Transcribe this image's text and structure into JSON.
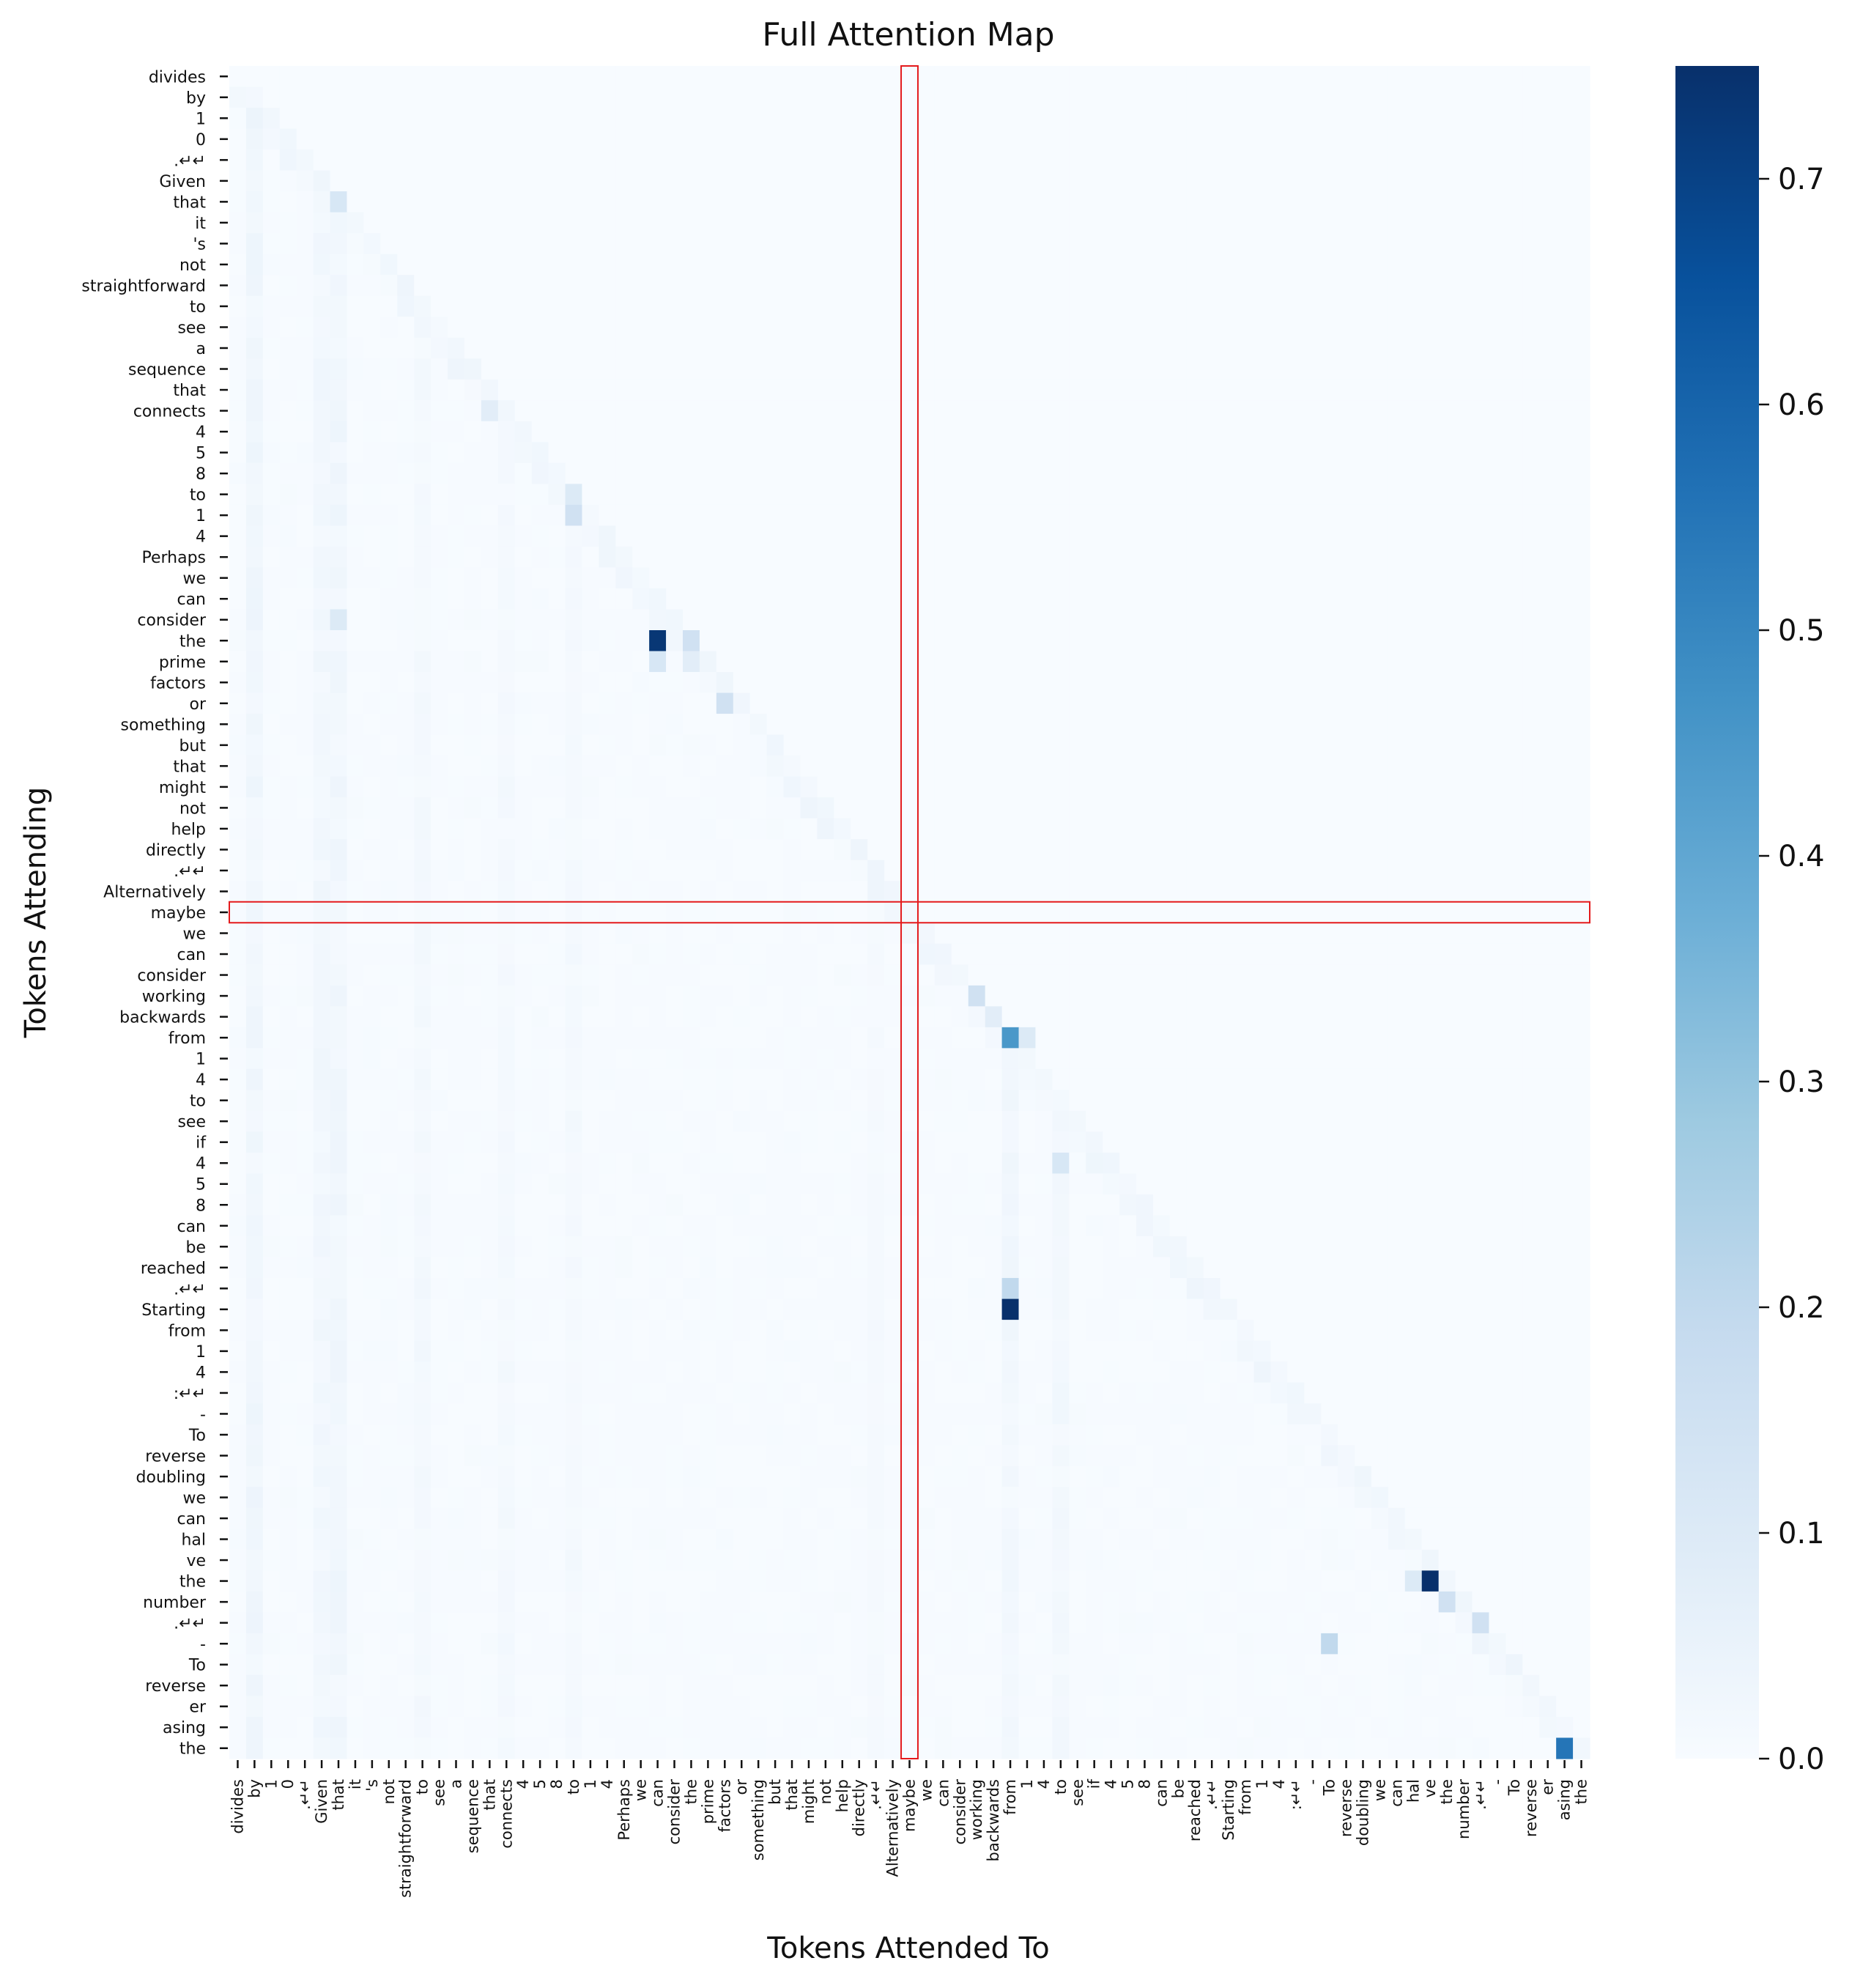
{
  "chart_data": {
    "type": "heatmap",
    "title": "Full Attention Map",
    "xlabel": "Tokens Attended To",
    "ylabel": "Tokens Attending",
    "colormap": "Blues",
    "colors": {
      "low": "#f7fbff",
      "high": "#08306b",
      "highlight": "#e41a1c"
    },
    "vmin": 0.0,
    "vmax": 0.75,
    "colorbar_ticks": [
      "0.0",
      "0.1",
      "0.2",
      "0.3",
      "0.4",
      "0.5",
      "0.6",
      "0.7"
    ],
    "x_tokens": [
      "divides",
      "by",
      "1",
      "0",
      ".↵↵",
      "Given",
      "that",
      "it",
      "'s",
      "not",
      "straightforward",
      "to",
      "see",
      "a",
      "sequence",
      "that",
      "connects",
      "4",
      "5",
      "8",
      "to",
      "1",
      "4",
      "Perhaps",
      "we",
      "can",
      "consider",
      "the",
      "prime",
      "factors",
      "or",
      "something",
      "but",
      "that",
      "might",
      "not",
      "help",
      "directly",
      ".↵↵",
      "Alternatively",
      "maybe",
      "we",
      "can",
      "consider",
      "working",
      "backwards",
      "from",
      "1",
      "4",
      "to",
      "see",
      "if",
      "4",
      "5",
      "8",
      "can",
      "be",
      "reached",
      ".↵↵",
      "Starting",
      "from",
      "1",
      "4",
      ":↵↵",
      "-",
      "To",
      "reverse",
      "doubling",
      "we",
      "can",
      "hal",
      "ve",
      "the",
      "number",
      ".↵↵",
      "-",
      "To",
      "reverse",
      "er",
      "asing",
      "the"
    ],
    "y_tokens": [
      "divides",
      "by",
      "1",
      "0",
      ".↵↵",
      "Given",
      "that",
      "it",
      "'s",
      "not",
      "straightforward",
      "to",
      "see",
      "a",
      "sequence",
      "that",
      "connects",
      "4",
      "5",
      "8",
      "to",
      "1",
      "4",
      "Perhaps",
      "we",
      "can",
      "consider",
      "the",
      "prime",
      "factors",
      "or",
      "something",
      "but",
      "that",
      "might",
      "not",
      "help",
      "directly",
      ".↵↵",
      "Alternatively",
      "maybe",
      "we",
      "can",
      "consider",
      "working",
      "backwards",
      "from",
      "1",
      "4",
      "to",
      "see",
      "if",
      "4",
      "5",
      "8",
      "can",
      "be",
      "reached",
      ".↵↵",
      "Starting",
      "from",
      "1",
      "4",
      ":↵↵",
      "-",
      "To",
      "reverse",
      "doubling",
      "we",
      "can",
      "hal",
      "ve",
      "the",
      "number",
      ".↵↵",
      "-",
      "To",
      "reverse",
      "er",
      "asing",
      "the"
    ],
    "highlight": {
      "row_token": "maybe",
      "col_token": "maybe"
    },
    "notable_cells": [
      {
        "row": "the",
        "col": "can",
        "value": 0.73
      },
      {
        "row": "the",
        "col": "the",
        "value": 0.15
      },
      {
        "row": "prime",
        "col": "can",
        "value": 0.12
      },
      {
        "row": "prime",
        "col": "the",
        "value": 0.08
      },
      {
        "row": "or",
        "col": "factors",
        "value": 0.15
      },
      {
        "row": "1",
        "col": "to",
        "value": 0.15
      },
      {
        "row": "to",
        "col": "to",
        "value": 0.1
      },
      {
        "row": "that",
        "col": "that",
        "value": 0.12
      },
      {
        "row": "consider",
        "col": "that",
        "value": 0.1
      },
      {
        "row": "connects",
        "col": "connects",
        "value": 0.08
      },
      {
        "row": "working",
        "col": "working",
        "value": 0.15
      },
      {
        "row": "from",
        "col": "from",
        "value": 0.45
      },
      {
        "row": "backwards",
        "col": "backwards",
        "value": 0.08
      },
      {
        "row": "Starting",
        "col": "from",
        "value": 0.75
      },
      {
        "row": ".↵↵",
        "col": "from",
        "value": 0.2
      },
      {
        "row": "4",
        "col": "to",
        "value": 0.12
      },
      {
        "row": "from",
        "col": "1",
        "value": 0.1
      },
      {
        "row": "the",
        "col": "ve",
        "value": 0.75
      },
      {
        "row": "the",
        "col": "hal",
        "value": 0.1
      },
      {
        "row": "number",
        "col": "the",
        "value": 0.15
      },
      {
        "row": ".↵↵",
        "col": ".↵↵",
        "value": 0.15
      },
      {
        "row": "-",
        "col": "To",
        "value": 0.2
      },
      {
        "row": "the",
        "col": "asing",
        "value": 0.55
      }
    ]
  }
}
